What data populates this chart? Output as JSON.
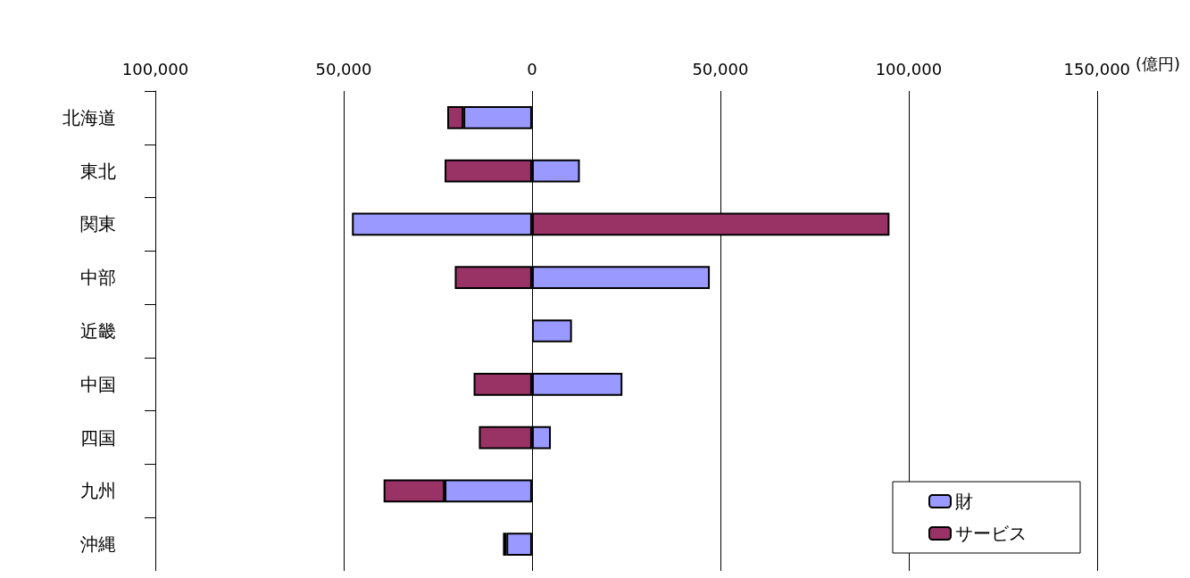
{
  "chart_data": {
    "type": "bar",
    "orientation": "horizontal",
    "stacked": true,
    "xlabel": "(億円)",
    "categories": [
      "北海道",
      "東北",
      "関東",
      "中部",
      "近畿",
      "中国",
      "四国",
      "九州",
      "沖縄"
    ],
    "series": [
      {
        "name": "財",
        "color": "#9999ff",
        "values": [
          -18200,
          12700,
          -47800,
          47200,
          10600,
          24000,
          5000,
          -23200,
          -6800
        ]
      },
      {
        "name": "サービス",
        "color": "#993366",
        "values": [
          -4300,
          -23200,
          94900,
          -20500,
          null,
          -15500,
          -14100,
          -16200,
          -900
        ]
      }
    ],
    "xlim": [
      -100000,
      150000
    ],
    "xticks": [
      {
        "value": -100000,
        "label": "100,000"
      },
      {
        "value": -50000,
        "label": "50,000"
      },
      0,
      {
        "value": 50000,
        "label": "50,000"
      },
      {
        "value": 100000,
        "label": "100,000"
      },
      {
        "value": 150000,
        "label": "150,000"
      }
    ],
    "grid": "x",
    "legend": "bottom right"
  }
}
